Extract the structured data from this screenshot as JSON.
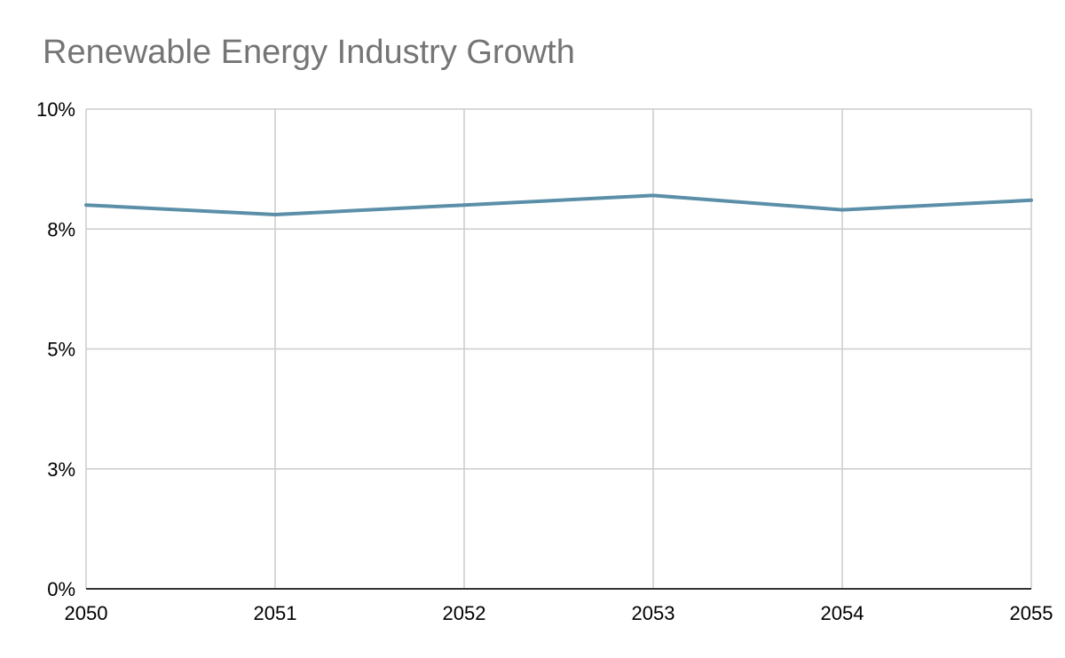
{
  "chart_data": {
    "type": "line",
    "title": "Renewable Energy Industry Growth",
    "xlabel": "",
    "ylabel": "",
    "x": [
      2050,
      2051,
      2052,
      2053,
      2054,
      2055
    ],
    "x_tick_labels": [
      "2050",
      "2051",
      "2052",
      "2053",
      "2054",
      "2055"
    ],
    "series": [
      {
        "values": [
          8.0,
          7.8,
          8.0,
          8.2,
          7.9,
          8.1
        ],
        "color": "#5b8fa8"
      }
    ],
    "ylim": [
      0,
      10
    ],
    "y_ticks": [
      0,
      2.5,
      5,
      7.5,
      10
    ],
    "y_tick_labels": [
      "0%",
      "3%",
      "5%",
      "8%",
      "10%"
    ],
    "grid": true,
    "legend": "none",
    "gridline_color": "#cccccc",
    "axis_color": "#333333"
  }
}
